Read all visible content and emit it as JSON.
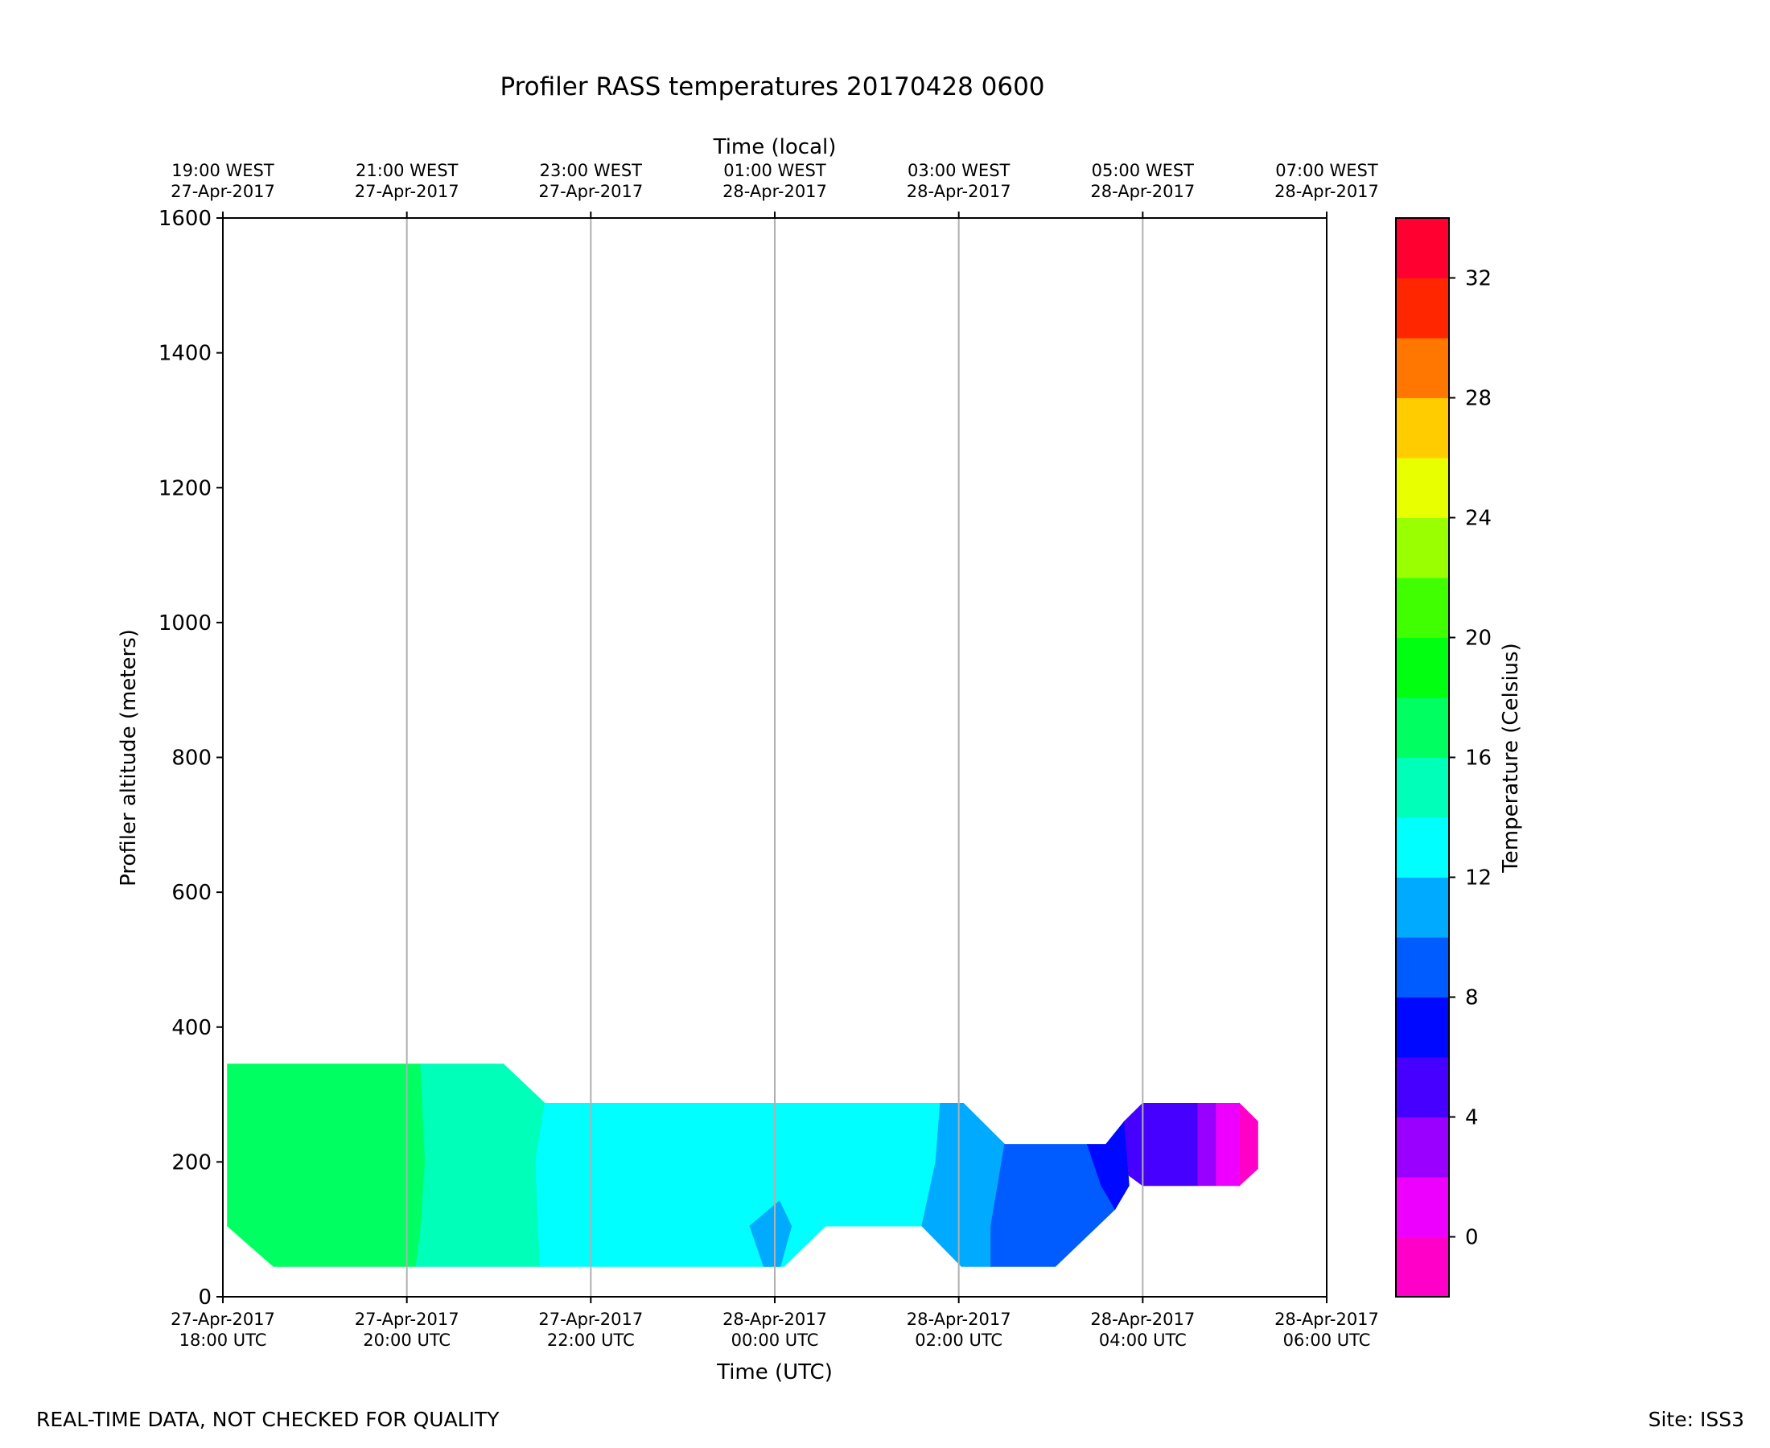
{
  "chart_data": {
    "type": "filled-contour",
    "title": "Profiler RASS temperatures 20170428 0600",
    "xlabel": "Time (UTC)",
    "xlabel_top": "Time (local)",
    "ylabel": "Profiler altitude (meters)",
    "ylim": [
      0,
      1600
    ],
    "yticks": [
      0,
      200,
      400,
      600,
      800,
      1000,
      1200,
      1400,
      1600
    ],
    "xlim_hours": [
      18,
      30
    ],
    "xticks_hours": [
      18,
      20,
      22,
      24,
      26,
      28,
      30
    ],
    "xtick_labels_bottom": [
      [
        "27-Apr-2017",
        "18:00 UTC"
      ],
      [
        "27-Apr-2017",
        "20:00 UTC"
      ],
      [
        "27-Apr-2017",
        "22:00 UTC"
      ],
      [
        "28-Apr-2017",
        "00:00 UTC"
      ],
      [
        "28-Apr-2017",
        "02:00 UTC"
      ],
      [
        "28-Apr-2017",
        "04:00 UTC"
      ],
      [
        "28-Apr-2017",
        "06:00 UTC"
      ]
    ],
    "xtick_labels_top": [
      [
        "19:00 WEST",
        "27-Apr-2017"
      ],
      [
        "21:00 WEST",
        "27-Apr-2017"
      ],
      [
        "23:00 WEST",
        "27-Apr-2017"
      ],
      [
        "01:00 WEST",
        "28-Apr-2017"
      ],
      [
        "03:00 WEST",
        "28-Apr-2017"
      ],
      [
        "05:00 WEST",
        "28-Apr-2017"
      ],
      [
        "07:00 WEST",
        "28-Apr-2017"
      ]
    ],
    "grid": "vertical",
    "colorbar": {
      "label": "Temperature (Celsius)",
      "range": [
        -2,
        34
      ],
      "levels": [
        {
          "from": -2,
          "to": 0,
          "color": "#ff00c8"
        },
        {
          "from": 0,
          "to": 2,
          "color": "#ee00ff"
        },
        {
          "from": 2,
          "to": 4,
          "color": "#9a00ff"
        },
        {
          "from": 4,
          "to": 6,
          "color": "#4600ff"
        },
        {
          "from": 6,
          "to": 8,
          "color": "#0008ff"
        },
        {
          "from": 8,
          "to": 10,
          "color": "#005cff"
        },
        {
          "from": 10,
          "to": 12,
          "color": "#00aaff"
        },
        {
          "from": 12,
          "to": 14,
          "color": "#00ffff"
        },
        {
          "from": 14,
          "to": 16,
          "color": "#00ffb8"
        },
        {
          "from": 16,
          "to": 18,
          "color": "#00ff60"
        },
        {
          "from": 18,
          "to": 20,
          "color": "#00ff10"
        },
        {
          "from": 20,
          "to": 22,
          "color": "#3fff00"
        },
        {
          "from": 22,
          "to": 24,
          "color": "#9aff00"
        },
        {
          "from": 24,
          "to": 26,
          "color": "#e8ff00"
        },
        {
          "from": 26,
          "to": 28,
          "color": "#ffcc00"
        },
        {
          "from": 28,
          "to": 30,
          "color": "#ff7700"
        },
        {
          "from": 30,
          "to": 32,
          "color": "#ff2600"
        },
        {
          "from": 32,
          "to": 34,
          "color": "#ff0030"
        }
      ],
      "ticks": [
        0,
        4,
        8,
        12,
        16,
        20,
        24,
        28,
        32
      ]
    },
    "regions": [
      {
        "name": "16-18C",
        "level_color": "#00ff60",
        "points": [
          [
            18.05,
            345
          ],
          [
            20.15,
            345
          ],
          [
            20.2,
            200
          ],
          [
            20.15,
            100
          ],
          [
            20.1,
            45
          ],
          [
            18.55,
            45
          ],
          [
            18.05,
            105
          ]
        ]
      },
      {
        "name": "14-16C",
        "level_color": "#00ffb8",
        "points": [
          [
            20.15,
            345
          ],
          [
            21.05,
            345
          ],
          [
            21.5,
            287
          ],
          [
            21.4,
            200
          ],
          [
            21.45,
            45
          ],
          [
            20.1,
            45
          ],
          [
            20.15,
            100
          ],
          [
            20.2,
            200
          ]
        ]
      },
      {
        "name": "12-14C",
        "level_color": "#00ffff",
        "points": [
          [
            21.5,
            287
          ],
          [
            23.8,
            287
          ],
          [
            25.8,
            287
          ],
          [
            25.75,
            200
          ],
          [
            25.6,
            105
          ],
          [
            24.55,
            105
          ],
          [
            24.1,
            45
          ],
          [
            21.45,
            45
          ],
          [
            21.4,
            200
          ]
        ]
      },
      {
        "name": "10-12C blob",
        "level_color": "#00aaff",
        "points": [
          [
            23.73,
            105
          ],
          [
            24.05,
            142
          ],
          [
            24.18,
            105
          ],
          [
            24.06,
            45
          ],
          [
            23.88,
            45
          ]
        ]
      },
      {
        "name": "10-12C",
        "level_color": "#00aaff",
        "points": [
          [
            25.8,
            287
          ],
          [
            26.05,
            287
          ],
          [
            26.5,
            226
          ],
          [
            26.35,
            105
          ],
          [
            26.35,
            45
          ],
          [
            26.03,
            45
          ],
          [
            25.6,
            105
          ],
          [
            25.75,
            200
          ]
        ]
      },
      {
        "name": "8-10C",
        "level_color": "#005cff",
        "points": [
          [
            26.5,
            226
          ],
          [
            27.4,
            226
          ],
          [
            27.55,
            165
          ],
          [
            27.7,
            130
          ],
          [
            27.05,
            45
          ],
          [
            26.35,
            45
          ],
          [
            26.35,
            105
          ]
        ]
      },
      {
        "name": "6-8C",
        "level_color": "#0008ff",
        "points": [
          [
            27.4,
            226
          ],
          [
            27.6,
            226
          ],
          [
            27.8,
            260
          ],
          [
            27.85,
            165
          ],
          [
            27.7,
            130
          ],
          [
            27.55,
            165
          ]
        ]
      },
      {
        "name": "4-6C",
        "level_color": "#4600ff",
        "points": [
          [
            27.8,
            260
          ],
          [
            28.0,
            287
          ],
          [
            28.6,
            287
          ],
          [
            28.6,
            165
          ],
          [
            28.0,
            165
          ],
          [
            27.85,
            180
          ]
        ]
      },
      {
        "name": "2-4C",
        "level_color": "#9a00ff",
        "points": [
          [
            28.6,
            287
          ],
          [
            28.8,
            287
          ],
          [
            28.8,
            165
          ],
          [
            28.6,
            165
          ]
        ]
      },
      {
        "name": "0-2C",
        "level_color": "#ee00ff",
        "points": [
          [
            28.8,
            287
          ],
          [
            29.05,
            287
          ],
          [
            29.05,
            165
          ],
          [
            28.8,
            165
          ]
        ]
      },
      {
        "name": "-2-0C",
        "level_color": "#ff00c8",
        "points": [
          [
            29.05,
            287
          ],
          [
            29.25,
            260
          ],
          [
            29.25,
            190
          ],
          [
            29.05,
            165
          ]
        ]
      }
    ]
  },
  "footer": {
    "left": "REAL-TIME DATA, NOT CHECKED FOR QUALITY",
    "right": "Site: ISS3"
  }
}
